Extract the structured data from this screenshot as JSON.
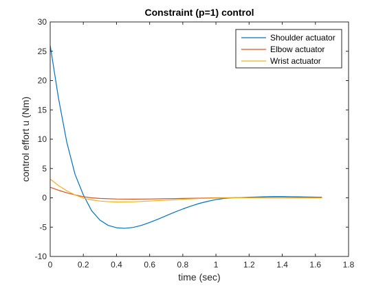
{
  "chart_data": {
    "type": "line",
    "title": "Constraint (p=1) control",
    "xlabel": "time (sec)",
    "ylabel": "control effort u (Nm)",
    "xlim": [
      0,
      1.8
    ],
    "ylim": [
      -10,
      30
    ],
    "xticks": [
      0,
      0.2,
      0.4,
      0.6,
      0.8,
      1,
      1.2,
      1.4,
      1.6,
      1.8
    ],
    "xtick_labels": [
      "0",
      "0.2",
      "0.4",
      "0.6",
      "0.8",
      "1",
      "1.2",
      "1.4",
      "1.6",
      "1.8"
    ],
    "yticks": [
      -10,
      -5,
      0,
      5,
      10,
      15,
      20,
      25,
      30
    ],
    "ytick_labels": [
      "-10",
      "-5",
      "0",
      "5",
      "10",
      "15",
      "20",
      "25",
      "30"
    ],
    "grid": false,
    "legend_position": "top-right",
    "series": [
      {
        "name": "Shoulder actuator",
        "color": "#0072BD",
        "x": [
          0,
          0.05,
          0.1,
          0.15,
          0.2,
          0.25,
          0.3,
          0.35,
          0.4,
          0.45,
          0.5,
          0.55,
          0.6,
          0.65,
          0.7,
          0.75,
          0.8,
          0.85,
          0.9,
          0.95,
          1.0,
          1.05,
          1.1,
          1.15,
          1.2,
          1.25,
          1.3,
          1.35,
          1.4,
          1.45,
          1.5,
          1.55,
          1.6,
          1.64
        ],
        "y": [
          26.0,
          17.0,
          9.5,
          4.0,
          0.5,
          -2.2,
          -3.8,
          -4.7,
          -5.1,
          -5.2,
          -5.05,
          -4.7,
          -4.2,
          -3.65,
          -3.05,
          -2.45,
          -1.9,
          -1.4,
          -0.95,
          -0.6,
          -0.3,
          -0.1,
          0.0,
          0.05,
          0.1,
          0.15,
          0.2,
          0.22,
          0.22,
          0.2,
          0.18,
          0.15,
          0.12,
          0.1
        ]
      },
      {
        "name": "Elbow actuator",
        "color": "#D95319",
        "x": [
          0,
          0.05,
          0.1,
          0.15,
          0.2,
          0.25,
          0.3,
          0.4,
          0.5,
          0.6,
          0.7,
          0.8,
          0.9,
          1.0,
          1.1,
          1.2,
          1.3,
          1.4,
          1.5,
          1.6,
          1.64
        ],
        "y": [
          1.8,
          1.3,
          0.85,
          0.5,
          0.2,
          0.0,
          -0.1,
          -0.2,
          -0.22,
          -0.2,
          -0.15,
          -0.1,
          -0.05,
          0.0,
          0.02,
          0.03,
          0.03,
          0.02,
          0.01,
          0.0,
          0.0
        ]
      },
      {
        "name": "Wrist actuator",
        "color": "#EDB120",
        "x": [
          0,
          0.05,
          0.1,
          0.15,
          0.2,
          0.25,
          0.3,
          0.35,
          0.4,
          0.45,
          0.5,
          0.6,
          0.7,
          0.8,
          0.9,
          1.0,
          1.1,
          1.2,
          1.3,
          1.4,
          1.5,
          1.6,
          1.64
        ],
        "y": [
          3.2,
          2.1,
          1.2,
          0.5,
          -0.05,
          -0.35,
          -0.55,
          -0.65,
          -0.7,
          -0.7,
          -0.68,
          -0.55,
          -0.4,
          -0.25,
          -0.12,
          -0.05,
          0.0,
          0.03,
          0.05,
          0.05,
          0.04,
          0.02,
          0.01
        ]
      }
    ]
  }
}
